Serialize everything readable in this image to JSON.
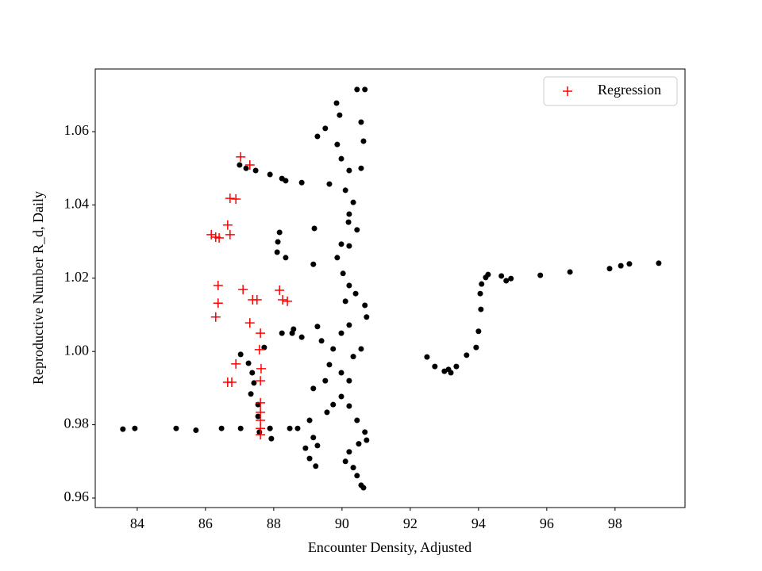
{
  "chart_data": {
    "type": "scatter",
    "xlabel": "Encounter Density, Adjusted",
    "ylabel": "Reproductive Number R_d, Daily",
    "xlim": [
      82.77,
      100.05
    ],
    "ylim": [
      0.9574,
      1.0771
    ],
    "xticks": [
      84,
      86,
      88,
      90,
      92,
      94,
      96,
      98
    ],
    "yticks": [
      0.96,
      0.98,
      {
        "value": 1,
        "label": "1.00"
      },
      1.02,
      1.04,
      1.06
    ],
    "grid": false,
    "legend_loc": "upper right",
    "series": [
      {
        "color": "#000000",
        "marker": "o",
        "x": [
          83.58,
          83.93,
          85.14,
          85.72,
          86.47,
          87.03,
          87.89,
          87.0,
          87.19,
          87.47,
          87.89,
          88.24,
          88.35,
          88.82,
          88.17,
          88.12,
          88.1,
          88.35,
          90.44,
          90.67,
          89.84,
          89.93,
          89.51,
          89.28,
          90.56,
          90.63,
          89.86,
          89.98,
          90.56,
          90.21,
          89.63,
          90.1,
          90.33,
          90.21,
          90.44,
          90.19,
          89.19,
          89.98,
          90.21,
          89.86,
          89.16,
          90.03,
          90.21,
          90.4,
          90.1,
          90.67,
          90.72,
          90.21,
          89.98,
          89.28,
          89.4,
          89.74,
          90.56,
          90.33,
          89.63,
          89.98,
          89.51,
          89.16,
          90.21,
          89.98,
          89.74,
          90.21,
          89.56,
          89.05,
          88.7,
          88.47,
          90.44,
          90.67,
          89.16,
          88.93,
          89.28,
          89.05,
          89.23,
          90.21,
          90.1,
          90.33,
          90.44,
          90.56,
          90.63,
          90.49,
          90.72,
          88.58,
          88.82,
          88.54,
          88.24,
          87.72,
          87.03,
          87.26,
          87.37,
          87.42,
          87.33,
          87.54,
          87.54,
          87.58,
          87.93,
          87.89,
          92.49,
          92.72,
          93.0,
          93.19,
          93.35,
          93.65,
          93.93,
          94.0,
          94.07,
          94.05,
          94.09,
          94.21,
          94.28,
          94.67,
          94.81,
          94.95,
          95.81,
          96.68,
          97.84,
          98.17,
          98.42,
          99.28,
          93.12
        ],
        "y": [
          0.9788,
          0.979,
          0.979,
          0.9785,
          0.979,
          0.979,
          0.979,
          1.0509,
          1.05,
          1.0494,
          1.0483,
          1.0472,
          1.0466,
          1.0461,
          1.0325,
          1.0299,
          1.0271,
          1.0256,
          1.0715,
          1.0715,
          1.0678,
          1.0645,
          1.0609,
          1.0587,
          1.0626,
          1.0574,
          1.0565,
          1.0526,
          1.05,
          1.0494,
          1.0457,
          1.044,
          1.0407,
          1.0375,
          1.0332,
          1.0353,
          1.0336,
          1.0293,
          1.0288,
          1.0256,
          1.0238,
          1.0213,
          1.018,
          1.0158,
          1.0137,
          1.0126,
          1.0094,
          1.0072,
          1.005,
          1.0068,
          1.0029,
          1.0007,
          1.0007,
          0.9986,
          0.9964,
          0.9942,
          0.992,
          0.9899,
          0.992,
          0.9877,
          0.9855,
          0.9851,
          0.9834,
          0.9812,
          0.979,
          0.979,
          0.9812,
          0.978,
          0.9765,
          0.9736,
          0.9743,
          0.9708,
          0.9687,
          0.9726,
          0.97,
          0.9683,
          0.9661,
          0.9635,
          0.9628,
          0.9748,
          0.9758,
          1.0061,
          1.0039,
          1.005,
          1.005,
          1.0011,
          0.9992,
          0.9968,
          0.9942,
          0.9914,
          0.9884,
          0.9855,
          0.9823,
          0.978,
          0.9762,
          0.979,
          0.9985,
          0.9959,
          0.9946,
          0.9942,
          0.9959,
          0.999,
          1.0011,
          1.0055,
          1.0115,
          1.0158,
          1.0184,
          1.0202,
          1.021,
          1.0206,
          1.0193,
          1.0199,
          1.0208,
          1.0217,
          1.0226,
          1.0234,
          1.0239,
          1.0241,
          0.9951
        ]
      },
      {
        "name": "Regression",
        "color": "#ff0000",
        "marker": "+",
        "x": [
          87.03,
          87.3,
          86.72,
          86.89,
          86.17,
          86.3,
          86.4,
          86.65,
          86.72,
          86.37,
          86.37,
          86.3,
          87.1,
          87.38,
          87.51,
          88.17,
          88.26,
          88.4,
          87.3,
          87.61,
          87.58,
          86.89,
          86.65,
          86.77,
          87.63,
          87.61,
          87.61,
          87.61,
          87.61,
          87.61,
          87.61
        ],
        "y": [
          1.0531,
          1.0509,
          1.0418,
          1.0416,
          1.0319,
          1.0312,
          1.031,
          1.0345,
          1.0319,
          1.018,
          1.0132,
          1.0094,
          1.0169,
          1.0141,
          1.0141,
          1.0167,
          1.0141,
          1.0137,
          1.0078,
          1.005,
          1.0005,
          0.9966,
          0.9916,
          0.9916,
          0.9953,
          0.992,
          0.986,
          0.9834,
          0.9812,
          0.979,
          0.9773
        ]
      }
    ]
  }
}
